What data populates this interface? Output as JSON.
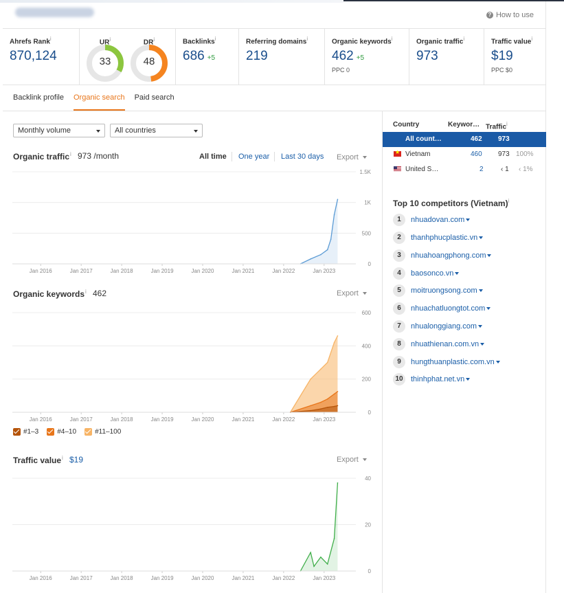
{
  "header": {
    "how_to_use": "How to use"
  },
  "metrics": {
    "ahrefs_rank": {
      "label": "Ahrefs Rank",
      "value": "870,124"
    },
    "ur": {
      "label": "UR",
      "value": "33",
      "score": 33
    },
    "dr": {
      "label": "DR",
      "value": "48",
      "score": 48
    },
    "backlinks": {
      "label": "Backlinks",
      "value": "686",
      "delta": "+5"
    },
    "referring_domains": {
      "label": "Referring domains",
      "value": "219"
    },
    "organic_keywords": {
      "label": "Organic keywords",
      "value": "462",
      "delta": "+5",
      "sub": "PPC 0"
    },
    "organic_traffic": {
      "label": "Organic traffic",
      "value": "973"
    },
    "traffic_value": {
      "label": "Traffic value",
      "value": "$19",
      "sub": "PPC $0"
    },
    "info_mark": "i"
  },
  "tabs": [
    {
      "label": "Backlink profile"
    },
    {
      "label": "Organic search"
    },
    {
      "label": "Paid search"
    }
  ],
  "filters": {
    "volume": "Monthly volume",
    "country": "All countries"
  },
  "traffic_section": {
    "title": "Organic traffic",
    "value": "973 /month",
    "ranges": [
      "All time",
      "One year",
      "Last 30 days"
    ],
    "export": "Export"
  },
  "keywords_section": {
    "title": "Organic keywords",
    "value": "462",
    "export": "Export",
    "legend": [
      "#1–3",
      "#4–10",
      "#11–100"
    ]
  },
  "value_section": {
    "title": "Traffic value",
    "value": "$19",
    "export": "Export"
  },
  "colors": {
    "accent": "#e8761b",
    "link": "#1a5ea8",
    "traffic_line": "#5b9bd5",
    "value_line": "#3fae49",
    "legend_1_3": "#b5540a",
    "legend_4_10": "#e8761b",
    "legend_11_100": "#f7b466",
    "ur_gauge": "#8cc63f",
    "dr_gauge": "#f5841f"
  },
  "countries": {
    "headers": [
      "Country",
      "Keywor…",
      "Traffic"
    ],
    "rows": [
      {
        "country": "All count…",
        "keywords": "462",
        "traffic": "973",
        "share": ""
      },
      {
        "country": "Vietnam",
        "keywords": "460",
        "traffic": "973",
        "share": "100%"
      },
      {
        "country": "United S…",
        "keywords": "2",
        "traffic": "‹ 1",
        "share": "‹ 1%"
      }
    ]
  },
  "competitors": {
    "title": "Top 10 competitors (Vietnam)",
    "items": [
      {
        "rank": "1",
        "domain": "nhuadovan.com"
      },
      {
        "rank": "2",
        "domain": "thanhphucplastic.vn"
      },
      {
        "rank": "3",
        "domain": "nhuahoangphong.com"
      },
      {
        "rank": "4",
        "domain": "baosonco.vn"
      },
      {
        "rank": "5",
        "domain": "moitruongsong.com"
      },
      {
        "rank": "6",
        "domain": "nhuachatluongtot.com"
      },
      {
        "rank": "7",
        "domain": "nhualonggiang.com"
      },
      {
        "rank": "8",
        "domain": "nhuathienan.com.vn"
      },
      {
        "rank": "9",
        "domain": "hungthuanplastic.com.vn"
      },
      {
        "rank": "10",
        "domain": "thinhphat.net.vn"
      }
    ]
  },
  "chart_data": [
    {
      "type": "area",
      "title": "Organic traffic",
      "x_ticks": [
        "Jan 2016",
        "Jan 2017",
        "Jan 2018",
        "Jan 2019",
        "Jan 2020",
        "Jan 2021",
        "Jan 2022",
        "Jan 2023"
      ],
      "y_ticks": [
        "1.5K",
        "1K",
        "500",
        "0"
      ],
      "ylim": [
        0,
        1500
      ],
      "series": [
        {
          "x": [
            "2022-06",
            "2022-09",
            "2022-12",
            "2023-02",
            "2023-03",
            "2023-04",
            "2023-05"
          ],
          "values": [
            0,
            80,
            150,
            230,
            400,
            800,
            1050
          ]
        }
      ]
    },
    {
      "type": "area",
      "title": "Organic keywords",
      "x_ticks": [
        "Jan 2016",
        "Jan 2017",
        "Jan 2018",
        "Jan 2019",
        "Jan 2020",
        "Jan 2021",
        "Jan 2022",
        "Jan 2023"
      ],
      "y_ticks": [
        "600",
        "400",
        "200",
        "0"
      ],
      "ylim": [
        0,
        600
      ],
      "series": [
        {
          "name": "#11–100",
          "x": [
            "2022-03",
            "2022-09",
            "2022-12",
            "2023-02",
            "2023-04",
            "2023-05"
          ],
          "values": [
            0,
            200,
            260,
            300,
            420,
            460
          ]
        },
        {
          "name": "#4–10",
          "x": [
            "2022-03",
            "2022-09",
            "2022-12",
            "2023-02",
            "2023-04",
            "2023-05"
          ],
          "values": [
            0,
            40,
            60,
            80,
            110,
            125
          ]
        },
        {
          "name": "#1–3",
          "x": [
            "2022-03",
            "2022-09",
            "2022-12",
            "2023-02",
            "2023-04",
            "2023-05"
          ],
          "values": [
            0,
            10,
            20,
            30,
            35,
            40
          ]
        }
      ]
    },
    {
      "type": "line",
      "title": "Traffic value",
      "x_ticks": [
        "Jan 2016",
        "Jan 2017",
        "Jan 2018",
        "Jan 2019",
        "Jan 2020",
        "Jan 2021",
        "Jan 2022",
        "Jan 2023"
      ],
      "y_ticks": [
        "40",
        "20",
        "0"
      ],
      "ylim": [
        0,
        40
      ],
      "series": [
        {
          "x": [
            "2022-06",
            "2022-09",
            "2022-10",
            "2022-12",
            "2023-02",
            "2023-04",
            "2023-05"
          ],
          "values": [
            0,
            8,
            2,
            6,
            3,
            14,
            38
          ]
        }
      ]
    }
  ]
}
